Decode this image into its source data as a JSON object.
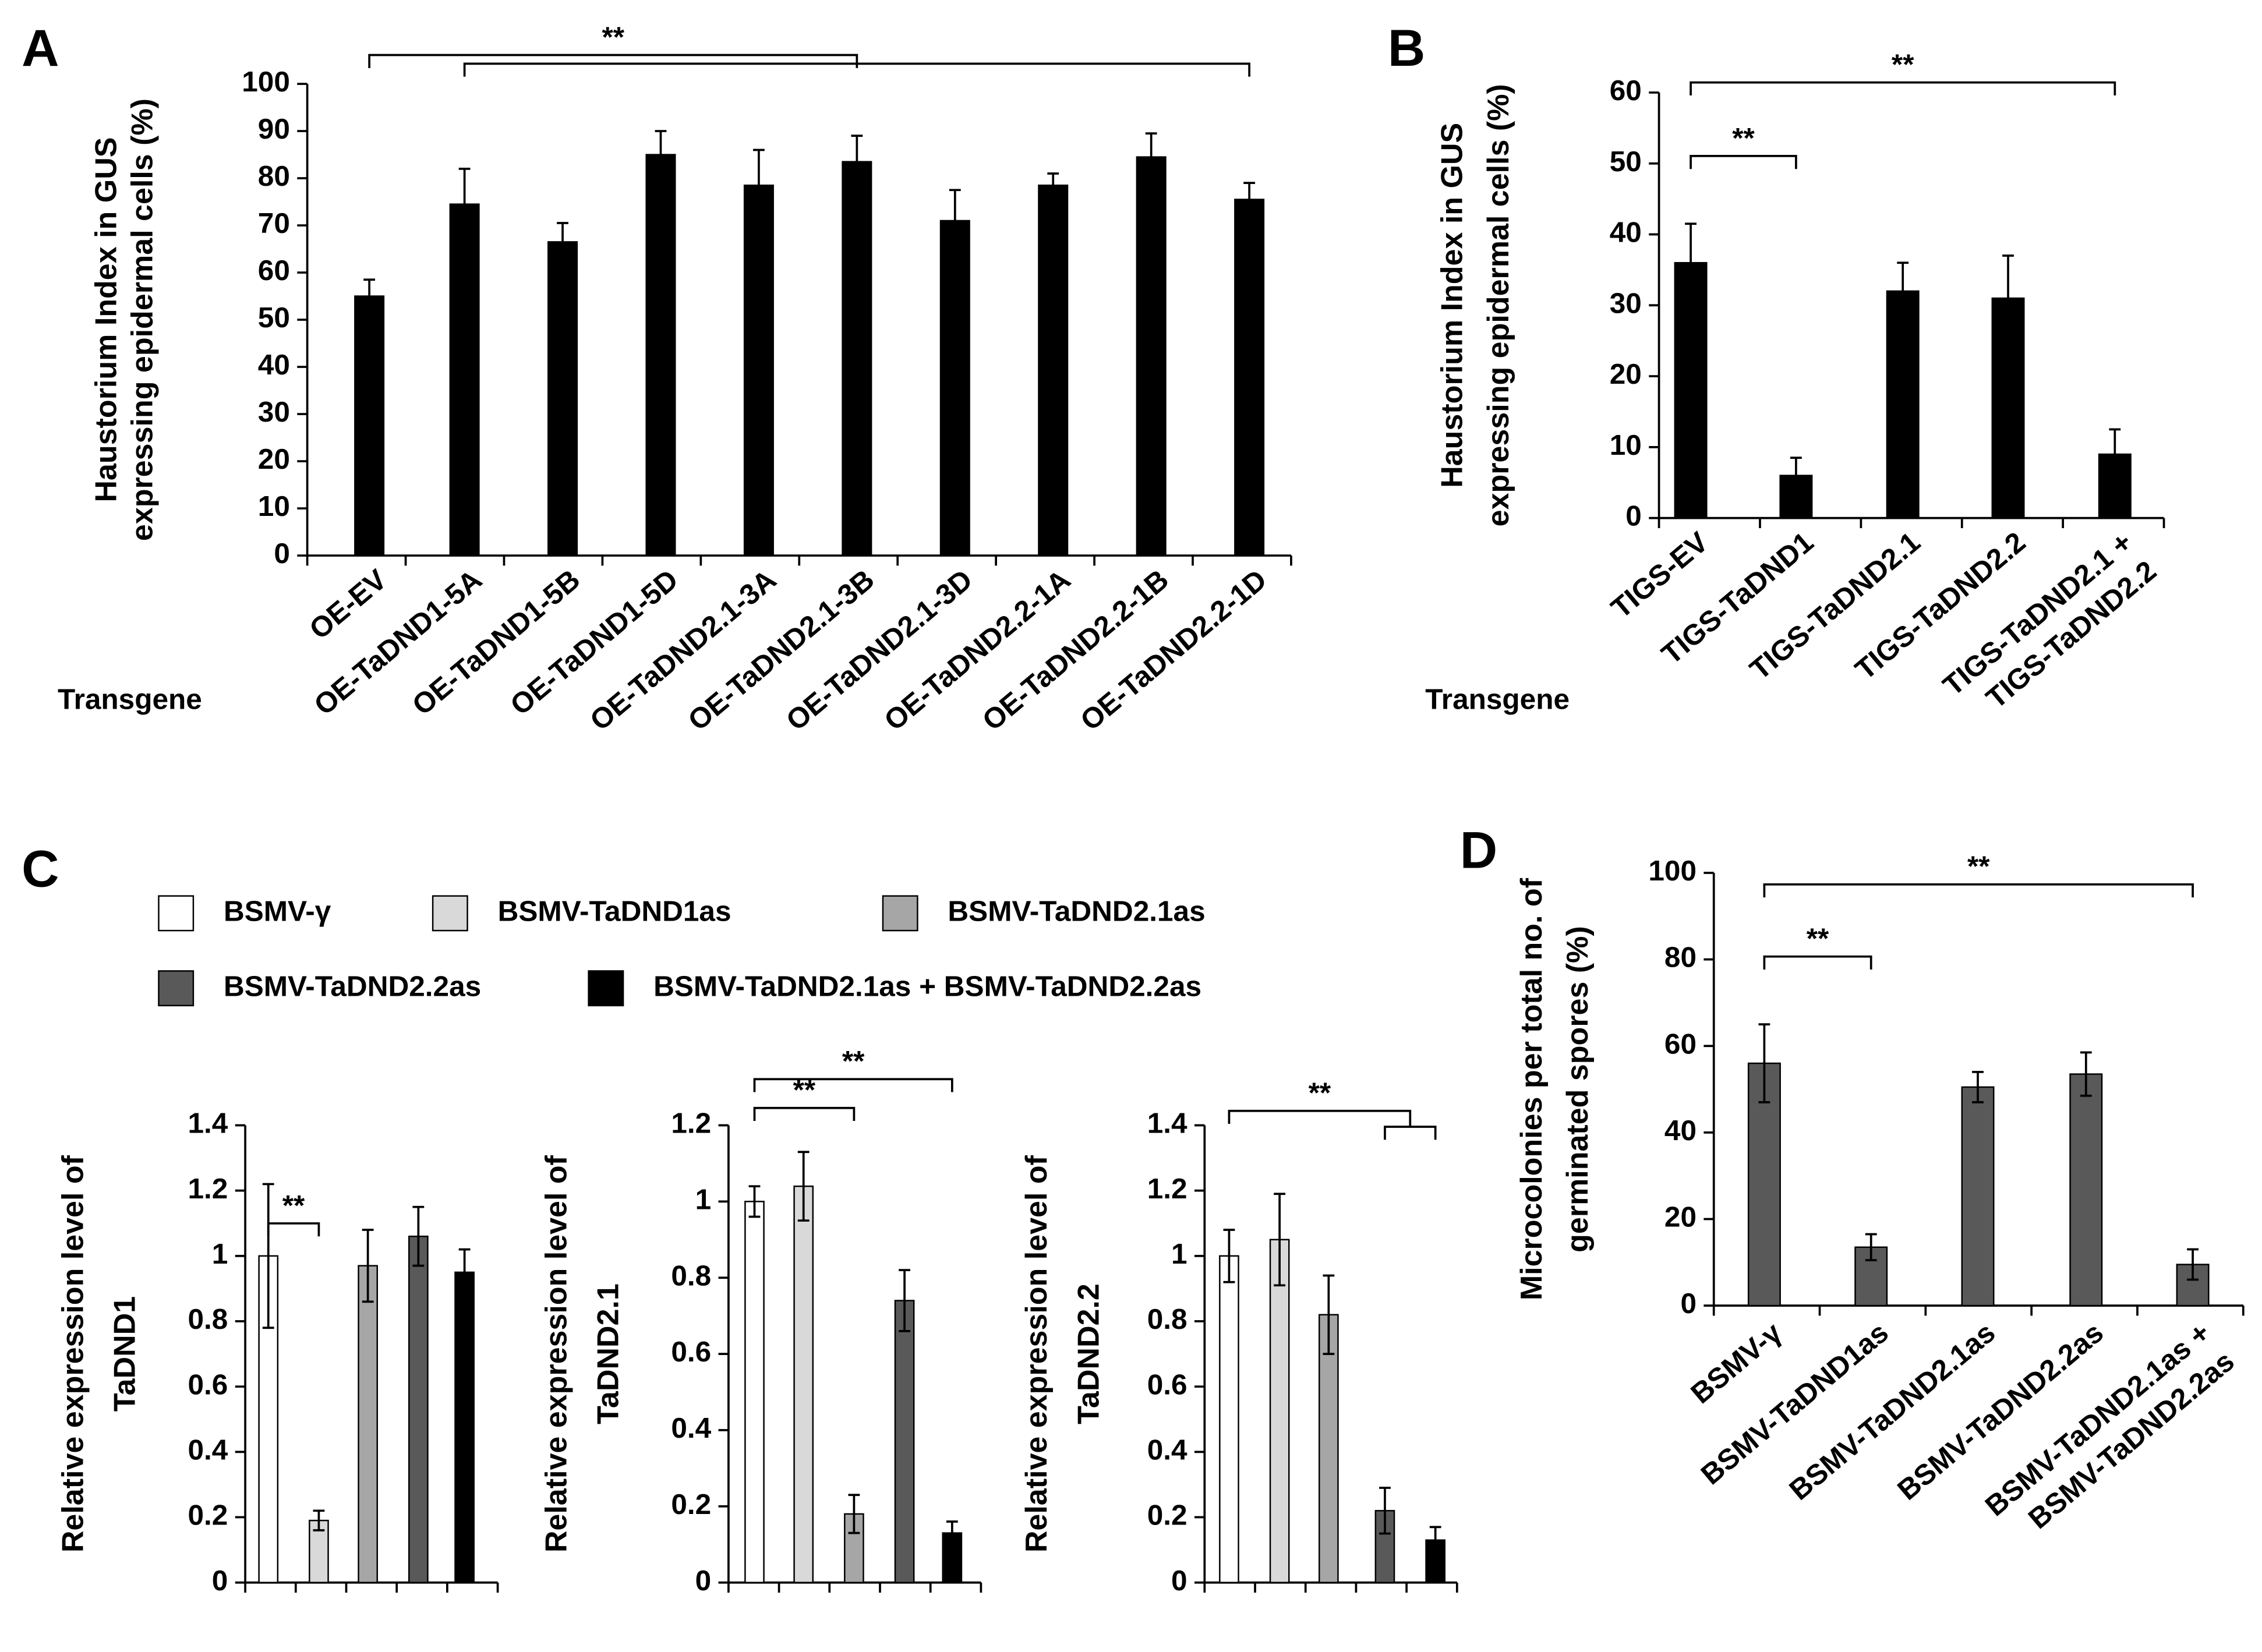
{
  "chart_data": [
    {
      "type": "bar",
      "panel_label": "A",
      "ylabel": [
        "Haustorium Index in GUS",
        "expressing  epidermal cells (%)"
      ],
      "x_label": "Transgene",
      "categories": [
        "OE-EV",
        "OE-TaDND1-5A",
        "OE-TaDND1-5B",
        "OE-TaDND1-5D",
        "OE-TaDND2.1-3A",
        "OE-TaDND2.1-3B",
        "OE-TaDND2.1-3D",
        "OE-TaDND2.2-1A",
        "OE-TaDND2.2-1B",
        "OE-TaDND2.2-1D"
      ],
      "values": [
        55,
        74.5,
        66.5,
        85,
        78.5,
        83.5,
        71,
        78.5,
        84.5,
        75.5
      ],
      "errors": [
        3.5,
        7.5,
        4,
        5,
        7.5,
        5.5,
        6.5,
        2.5,
        5,
        3.5
      ],
      "error_bars": "up",
      "color": "#000000",
      "ylim": [
        0,
        100
      ],
      "yticks": [
        0,
        10,
        20,
        30,
        40,
        50,
        60,
        70,
        80,
        90,
        100
      ],
      "annotations": [
        {
          "text": "**",
          "from": 0,
          "to": 5
        },
        {
          "from": 1,
          "to": 9
        }
      ]
    },
    {
      "type": "bar",
      "panel_label": "B",
      "ylabel": [
        "Haustorium Index in GUS",
        "expressing  epidermal cells (%)"
      ],
      "x_label": "Transgene",
      "categories": [
        "TIGS-EV",
        "TIGS-TaDND1",
        "TIGS-TaDND2.1",
        "TIGS-TaDND2.2",
        [
          "TIGS-TaDND2.1 +",
          "TIGS-TaDND2.2"
        ]
      ],
      "values": [
        36,
        6,
        32,
        31,
        9
      ],
      "errors": [
        5.5,
        2.5,
        4,
        6,
        3.5
      ],
      "error_bars": "up",
      "color": "#000000",
      "ylim": [
        0,
        60
      ],
      "yticks": [
        0,
        10,
        20,
        30,
        40,
        50,
        60
      ],
      "annotations": [
        {
          "text": "**",
          "from": 0,
          "to": 1
        },
        {
          "text": "**",
          "from": 0,
          "to": 4
        }
      ]
    },
    {
      "type": "bar",
      "ylabel": [
        "Relative expression level of",
        "TaDND1"
      ],
      "values": [
        1.0,
        0.19,
        0.97,
        1.06,
        0.95
      ],
      "errors": [
        0.22,
        0.03,
        0.11,
        0.09,
        0.07
      ],
      "error_bars": "both",
      "ylim": [
        0,
        1.4
      ],
      "yticks": [
        0,
        0.2,
        0.4,
        0.6,
        0.8,
        1,
        1.2,
        1.4
      ],
      "annotations": [
        {
          "text": "**",
          "from": 0,
          "to": 1
        }
      ]
    },
    {
      "type": "bar",
      "ylabel": [
        "Relative expression level of",
        "TaDND2.1"
      ],
      "values": [
        1.0,
        1.04,
        0.18,
        0.74,
        0.13
      ],
      "errors": [
        0.04,
        0.09,
        0.05,
        0.08,
        0.03
      ],
      "error_bars": "both",
      "ylim": [
        0,
        1.2
      ],
      "yticks": [
        0,
        0.2,
        0.4,
        0.6,
        0.8,
        1,
        1.2
      ],
      "annotations": [
        {
          "text": "**",
          "from": 0,
          "to": 2
        },
        {
          "text": "**",
          "from": 0,
          "to": 4
        }
      ]
    },
    {
      "type": "bar",
      "ylabel": [
        "Relative expression level of",
        "TaDND2.2"
      ],
      "values": [
        1.0,
        1.05,
        0.82,
        0.22,
        0.13
      ],
      "errors": [
        0.08,
        0.14,
        0.12,
        0.07,
        0.04
      ],
      "error_bars": "both",
      "ylim": [
        0,
        1.4
      ],
      "yticks": [
        0,
        0.2,
        0.4,
        0.6,
        0.8,
        1,
        1.2,
        1.4
      ],
      "annotations": [
        {
          "text": "**",
          "from": 0,
          "to": [
            3,
            4
          ]
        }
      ]
    },
    {
      "type": "bar",
      "panel_label": "D",
      "ylabel": [
        "Microcolonies per total no. of",
        "germinated spores (%)"
      ],
      "categories": [
        "BSMV-γ",
        "BSMV-TaDND1as",
        "BSMV-TaDND2.1as",
        "BSMV-TaDND2.2as",
        [
          "BSMV-TaDND2.1as +",
          "BSMV-TaDND2.2as"
        ]
      ],
      "values": [
        56,
        13.5,
        50.5,
        53.5,
        9.5
      ],
      "errors": [
        9,
        3,
        3.5,
        5,
        3.5
      ],
      "error_bars": "both",
      "color": "#595959",
      "ylim": [
        0,
        100
      ],
      "yticks": [
        0,
        20,
        40,
        60,
        80,
        100
      ],
      "annotations": [
        {
          "text": "**",
          "from": 0,
          "to": 1
        },
        {
          "text": "**",
          "from": 0,
          "to": 4
        }
      ]
    }
  ],
  "legend": {
    "panel_label": "C",
    "entries": [
      {
        "name": "BSMV-γ",
        "color": "#ffffff"
      },
      {
        "name": "BSMV-TaDND1as",
        "color": "#d9d9d9"
      },
      {
        "name": "BSMV-TaDND2.1as",
        "color": "#a6a6a6"
      },
      {
        "name": "BSMV-TaDND2.2as",
        "color": "#595959"
      },
      {
        "name": "BSMV-TaDND2.1as + BSMV-TaDND2.2as",
        "color": "#000000"
      }
    ]
  }
}
